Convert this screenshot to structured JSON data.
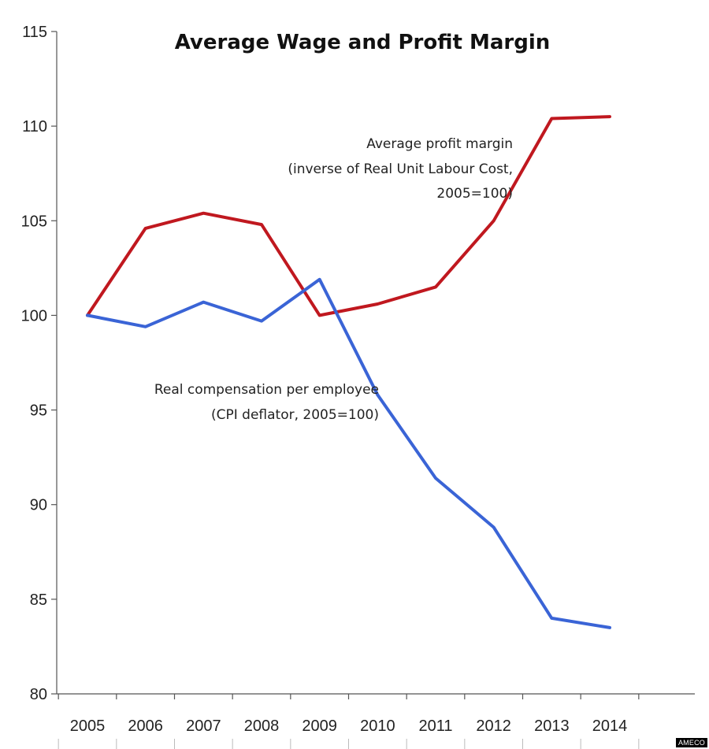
{
  "chart_data": {
    "type": "line",
    "title": "Average Wage and Profit Margin",
    "x": [
      "2005",
      "2006",
      "2007",
      "2008",
      "2009",
      "2010",
      "2011",
      "2012",
      "2013",
      "2014"
    ],
    "yticks": [
      "80",
      "85",
      "90",
      "95",
      "100",
      "105",
      "110",
      "115"
    ],
    "ylim": [
      80,
      115
    ],
    "grid": false,
    "series": [
      {
        "name": "Average profit margin (inverse of Real Unit Labour Cost, 2005=100)",
        "color": "#c0181f",
        "values": [
          100,
          104.6,
          105.4,
          104.8,
          100,
          100.6,
          101.5,
          105.0,
          110.4,
          110.5
        ]
      },
      {
        "name": "Real compensation per employee (CPI deflator, 2005=100)",
        "color": "#3a64d6",
        "values": [
          100,
          99.4,
          100.7,
          99.7,
          101.9,
          95.8,
          91.4,
          88.8,
          84.0,
          83.5
        ]
      }
    ],
    "annotations": {
      "profit_line1": "Average profit margin",
      "profit_line2": "(inverse of Real Unit Labour Cost,",
      "profit_line3": "2005=100)",
      "wage_line1": "Real compensation per employee",
      "wage_line2": "(CPI deflator, 2005=100)"
    }
  },
  "source": "AMECO"
}
